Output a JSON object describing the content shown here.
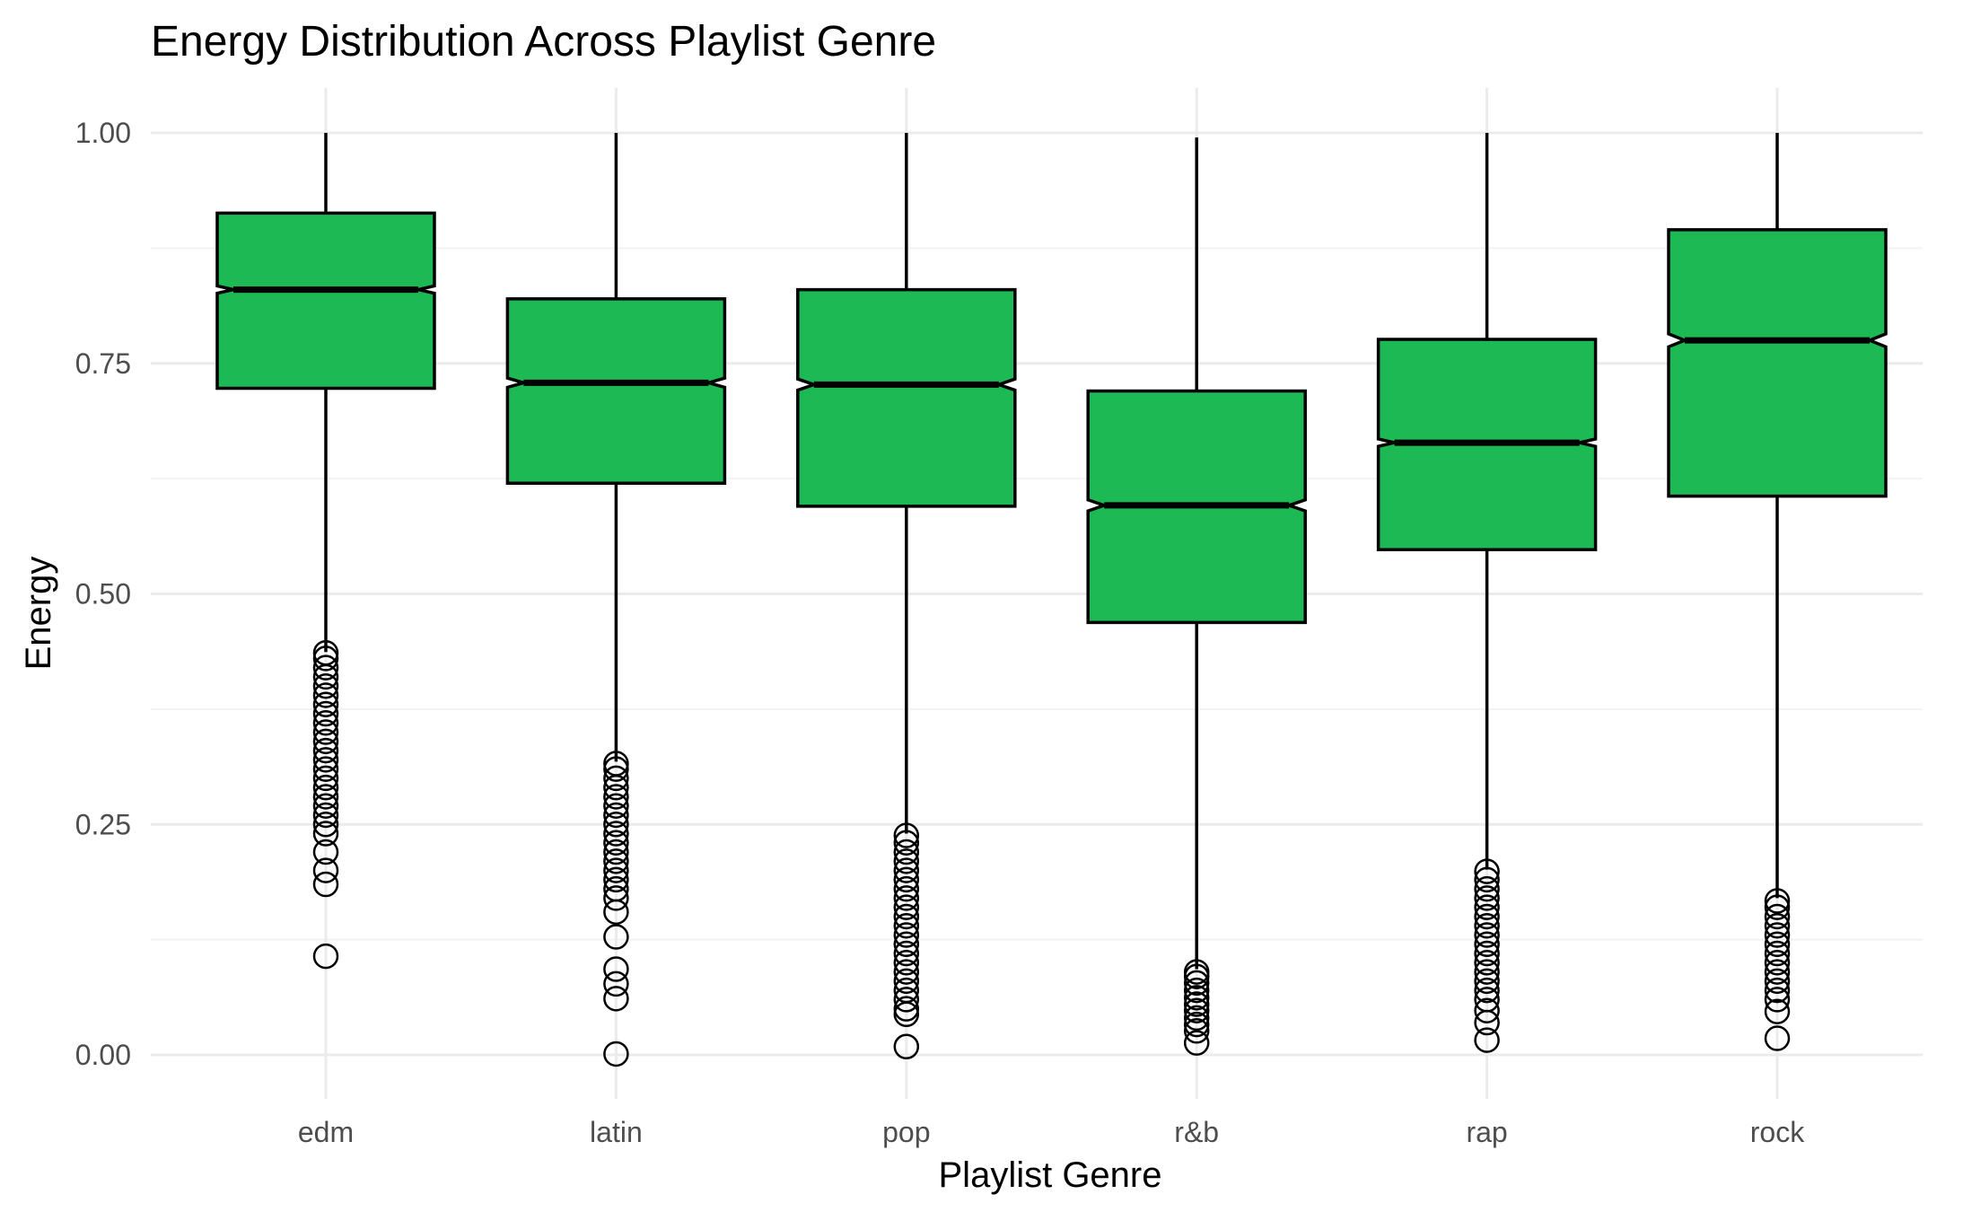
{
  "chart_data": {
    "type": "boxplot",
    "title": "Energy Distribution Across Playlist Genre",
    "xlabel": "Playlist Genre",
    "ylabel": "Energy",
    "ylim": [
      -0.045,
      1.045
    ],
    "yticks": [
      0.0,
      0.25,
      0.5,
      0.75,
      1.0
    ],
    "ytick_labels": [
      "0.00",
      "0.25",
      "0.50",
      "0.75",
      "1.00"
    ],
    "grid": true,
    "notched": true,
    "fill_color": "#1DB954",
    "outline_color": "#000000",
    "categories": [
      "edm",
      "latin",
      "pop",
      "r&b",
      "rap",
      "rock"
    ],
    "boxes": [
      {
        "category": "edm",
        "q1": 0.723,
        "median": 0.83,
        "q3": 0.913,
        "notch_low": 0.826,
        "notch_high": 0.834,
        "whisker_low": 0.437,
        "whisker_high": 1.0,
        "outliers": [
          0.436,
          0.43,
          0.42,
          0.41,
          0.4,
          0.39,
          0.38,
          0.37,
          0.36,
          0.35,
          0.34,
          0.33,
          0.32,
          0.31,
          0.3,
          0.29,
          0.28,
          0.27,
          0.26,
          0.25,
          0.24,
          0.22,
          0.2,
          0.185,
          0.107
        ]
      },
      {
        "category": "latin",
        "q1": 0.62,
        "median": 0.729,
        "q3": 0.82,
        "notch_low": 0.724,
        "notch_high": 0.734,
        "whisker_low": 0.318,
        "whisker_high": 1.0,
        "outliers": [
          0.316,
          0.31,
          0.3,
          0.29,
          0.28,
          0.27,
          0.26,
          0.25,
          0.24,
          0.23,
          0.22,
          0.21,
          0.2,
          0.19,
          0.18,
          0.17,
          0.155,
          0.128,
          0.093,
          0.077,
          0.061,
          0.001
        ]
      },
      {
        "category": "pop",
        "q1": 0.595,
        "median": 0.727,
        "q3": 0.83,
        "notch_low": 0.721,
        "notch_high": 0.733,
        "whisker_low": 0.24,
        "whisker_high": 1.0,
        "outliers": [
          0.238,
          0.23,
          0.22,
          0.21,
          0.2,
          0.19,
          0.18,
          0.17,
          0.16,
          0.15,
          0.14,
          0.13,
          0.12,
          0.11,
          0.1,
          0.09,
          0.08,
          0.07,
          0.06,
          0.05,
          0.044,
          0.009
        ]
      },
      {
        "category": "r&b",
        "q1": 0.469,
        "median": 0.596,
        "q3": 0.72,
        "notch_low": 0.59,
        "notch_high": 0.602,
        "whisker_low": 0.093,
        "whisker_high": 0.995,
        "outliers": [
          0.09,
          0.085,
          0.078,
          0.07,
          0.062,
          0.055,
          0.048,
          0.04,
          0.033,
          0.026,
          0.013
        ]
      },
      {
        "category": "rap",
        "q1": 0.548,
        "median": 0.664,
        "q3": 0.776,
        "notch_low": 0.66,
        "notch_high": 0.668,
        "whisker_low": 0.201,
        "whisker_high": 1.0,
        "outliers": [
          0.199,
          0.19,
          0.18,
          0.17,
          0.16,
          0.15,
          0.14,
          0.13,
          0.12,
          0.11,
          0.1,
          0.09,
          0.08,
          0.07,
          0.06,
          0.048,
          0.035,
          0.016
        ]
      },
      {
        "category": "rock",
        "q1": 0.606,
        "median": 0.775,
        "q3": 0.895,
        "notch_low": 0.768,
        "notch_high": 0.782,
        "whisker_low": 0.17,
        "whisker_high": 1.0,
        "outliers": [
          0.167,
          0.16,
          0.15,
          0.14,
          0.13,
          0.12,
          0.11,
          0.1,
          0.09,
          0.08,
          0.07,
          0.06,
          0.047,
          0.018
        ]
      }
    ]
  }
}
